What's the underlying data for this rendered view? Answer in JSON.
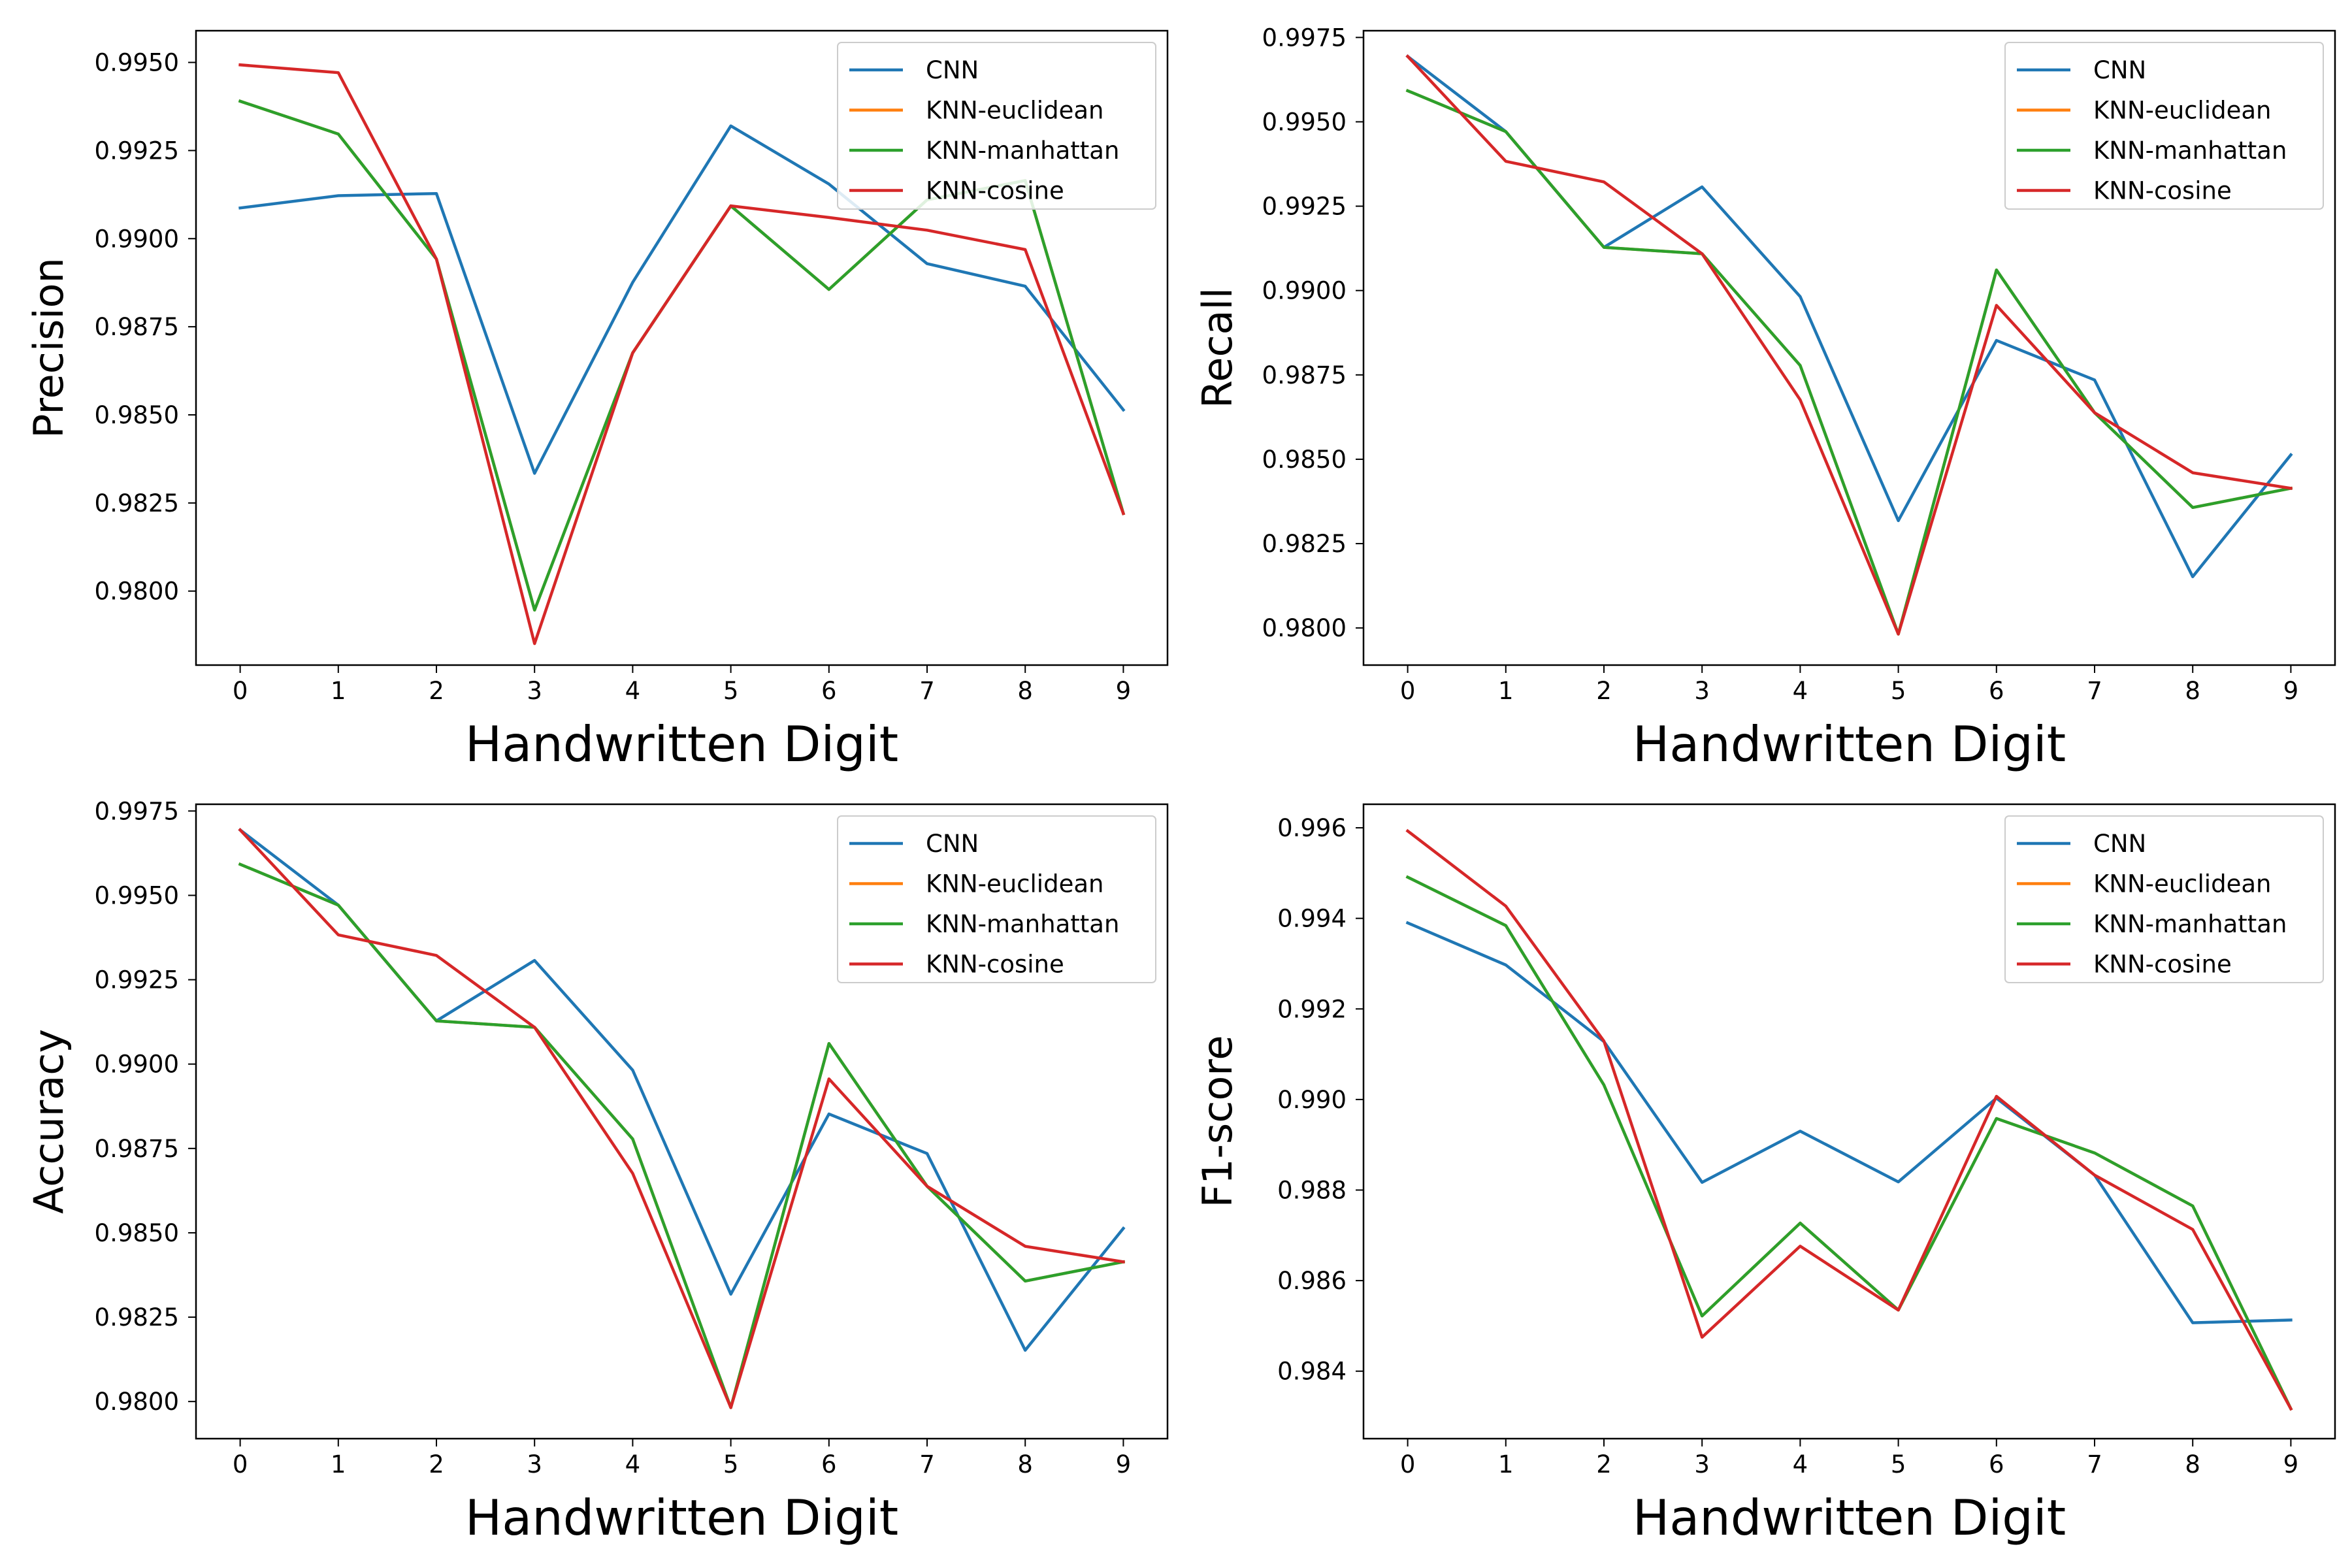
{
  "colors": {
    "CNN": "#1f77b4",
    "KNN-euclidean": "#ff7f0e",
    "KNN-manhattan": "#2ca02c",
    "KNN-cosine": "#d62728"
  },
  "legend_placement": "top-right",
  "chart_data": [
    {
      "type": "line",
      "xlabel": "Handwritten Digit",
      "ylabel": "Precision",
      "x": [
        0,
        1,
        2,
        3,
        4,
        5,
        6,
        7,
        8,
        9
      ],
      "xticks": [
        "0",
        "1",
        "2",
        "3",
        "4",
        "5",
        "6",
        "7",
        "8",
        "9"
      ],
      "ylim": [
        0.9779,
        0.9959
      ],
      "yticks": [
        "0.9800",
        "0.9825",
        "0.9850",
        "0.9875",
        "0.9900",
        "0.9925",
        "0.9950"
      ],
      "grid": false,
      "series": [
        {
          "name": "CNN",
          "values": [
            0.99087,
            0.99122,
            0.99128,
            0.98334,
            0.98876,
            0.9932,
            0.99155,
            0.98929,
            0.98865,
            0.98514
          ]
        },
        {
          "name": "KNN-euclidean",
          "values": [
            0.9939,
            0.99297,
            0.98942,
            0.97946,
            0.98676,
            0.99093,
            0.98856,
            0.9911,
            0.99165,
            0.9822
          ]
        },
        {
          "name": "KNN-manhattan",
          "values": [
            0.9939,
            0.99297,
            0.98942,
            0.97946,
            0.98676,
            0.99093,
            0.98856,
            0.9911,
            0.99165,
            0.9822
          ]
        },
        {
          "name": "KNN-cosine",
          "values": [
            0.99493,
            0.99471,
            0.98942,
            0.97851,
            0.98676,
            0.99093,
            0.9906,
            0.99024,
            0.98969,
            0.9822
          ]
        }
      ]
    },
    {
      "type": "line",
      "xlabel": "Handwritten Digit",
      "ylabel": "Recall",
      "x": [
        0,
        1,
        2,
        3,
        4,
        5,
        6,
        7,
        8,
        9
      ],
      "xticks": [
        "0",
        "1",
        "2",
        "3",
        "4",
        "5",
        "6",
        "7",
        "8",
        "9"
      ],
      "ylim": [
        0.9789,
        0.9977
      ],
      "yticks": [
        "0.9800",
        "0.9825",
        "0.9850",
        "0.9875",
        "0.9900",
        "0.9925",
        "0.9950",
        "0.9975"
      ],
      "grid": false,
      "series": [
        {
          "name": "CNN",
          "values": [
            0.99694,
            0.99471,
            0.99128,
            0.99307,
            0.98982,
            0.98318,
            0.98852,
            0.98735,
            0.98152,
            0.98513
          ]
        },
        {
          "name": "KNN-euclidean",
          "values": [
            0.99592,
            0.99471,
            0.99128,
            0.99109,
            0.98778,
            0.97982,
            0.99061,
            0.98638,
            0.98357,
            0.98414
          ]
        },
        {
          "name": "KNN-manhattan",
          "values": [
            0.99592,
            0.99471,
            0.99128,
            0.99109,
            0.98778,
            0.97982,
            0.99061,
            0.98638,
            0.98357,
            0.98414
          ]
        },
        {
          "name": "KNN-cosine",
          "values": [
            0.99694,
            0.99383,
            0.99322,
            0.99109,
            0.98676,
            0.97982,
            0.98956,
            0.98638,
            0.9846,
            0.98414
          ]
        }
      ]
    },
    {
      "type": "line",
      "xlabel": "Handwritten Digit",
      "ylabel": "Accuracy",
      "x": [
        0,
        1,
        2,
        3,
        4,
        5,
        6,
        7,
        8,
        9
      ],
      "xticks": [
        "0",
        "1",
        "2",
        "3",
        "4",
        "5",
        "6",
        "7",
        "8",
        "9"
      ],
      "ylim": [
        0.9789,
        0.9977
      ],
      "yticks": [
        "0.9800",
        "0.9825",
        "0.9850",
        "0.9875",
        "0.9900",
        "0.9925",
        "0.9950",
        "0.9975"
      ],
      "grid": false,
      "series": [
        {
          "name": "CNN",
          "values": [
            0.99694,
            0.99471,
            0.99128,
            0.99307,
            0.98982,
            0.98318,
            0.98852,
            0.98735,
            0.98152,
            0.98513
          ]
        },
        {
          "name": "KNN-euclidean",
          "values": [
            0.99592,
            0.99471,
            0.99128,
            0.99109,
            0.98778,
            0.97982,
            0.99061,
            0.98638,
            0.98357,
            0.98414
          ]
        },
        {
          "name": "KNN-manhattan",
          "values": [
            0.99592,
            0.99471,
            0.99128,
            0.99109,
            0.98778,
            0.97982,
            0.99061,
            0.98638,
            0.98357,
            0.98414
          ]
        },
        {
          "name": "KNN-cosine",
          "values": [
            0.99694,
            0.99383,
            0.99322,
            0.99109,
            0.98676,
            0.97982,
            0.98956,
            0.98638,
            0.9846,
            0.98414
          ]
        }
      ]
    },
    {
      "type": "line",
      "xlabel": "Handwritten Digit",
      "ylabel": "F1-score",
      "x": [
        0,
        1,
        2,
        3,
        4,
        5,
        6,
        7,
        8,
        9
      ],
      "xticks": [
        "0",
        "1",
        "2",
        "3",
        "4",
        "5",
        "6",
        "7",
        "8",
        "9"
      ],
      "ylim": [
        0.98251,
        0.99652
      ],
      "yticks": [
        "0.984",
        "0.986",
        "0.988",
        "0.990",
        "0.992",
        "0.994",
        "0.996"
      ],
      "grid": false,
      "series": [
        {
          "name": "CNN",
          "values": [
            0.9939,
            0.99297,
            0.99128,
            0.98817,
            0.9893,
            0.98818,
            0.99003,
            0.98833,
            0.98507,
            0.98513
          ]
        },
        {
          "name": "KNN-euclidean",
          "values": [
            0.99491,
            0.99384,
            0.99032,
            0.98522,
            0.98727,
            0.98535,
            0.98958,
            0.98882,
            0.98765,
            0.98317
          ]
        },
        {
          "name": "KNN-manhattan",
          "values": [
            0.99491,
            0.99384,
            0.99032,
            0.98522,
            0.98727,
            0.98535,
            0.98958,
            0.98882,
            0.98765,
            0.98317
          ]
        },
        {
          "name": "KNN-cosine",
          "values": [
            0.99593,
            0.99427,
            0.99129,
            0.98475,
            0.98676,
            0.98535,
            0.99007,
            0.98833,
            0.98713,
            0.98317
          ]
        }
      ]
    }
  ]
}
